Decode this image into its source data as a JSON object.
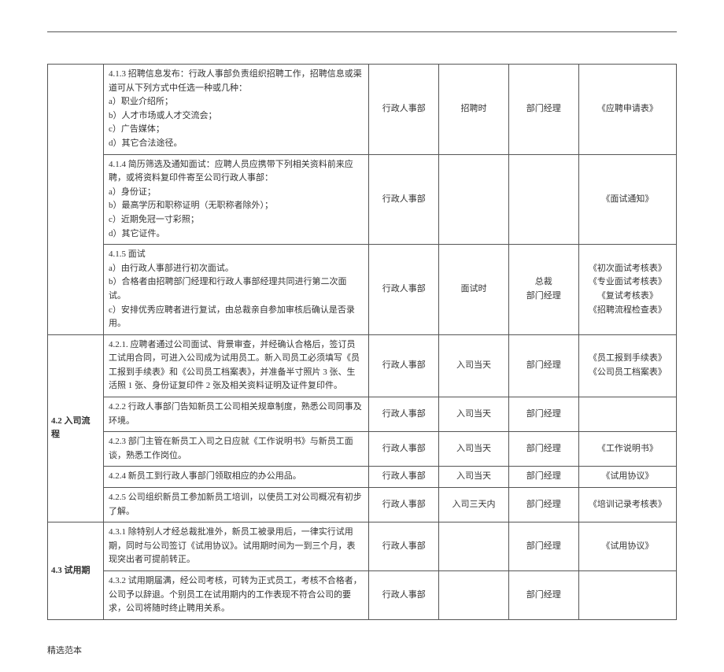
{
  "footer": "精选范本",
  "sections": {
    "s42": "4.2 入司流程",
    "s43": "4.3  试用期"
  },
  "rows": [
    {
      "desc": "4.1.3 招聘信息发布：行政人事部负责组织招聘工作，招聘信息或渠道可从下列方式中任选一种或几种：\na）职业介绍所；\nb）人才市场或人才交流会；\nc）广告媒体；\nd）其它合法途径。",
      "col3": "行政人事部",
      "col4": "招聘时",
      "col5": "部门经理",
      "col6": "《应聘申请表》"
    },
    {
      "desc": "4.1.4 简历筛选及通知面试：应聘人员应携带下列相关资料前来应聘，或将资料复印件寄至公司行政人事部：\na）身份证；\nb）最高学历和职称证明（无职称者除外）；\nc）近期免冠一寸彩照；\nd）其它证件。",
      "col3": "行政人事部",
      "col4": "",
      "col5": "",
      "col6": "《面试通知》"
    },
    {
      "desc": "4.1.5 面试\na）由行政人事部进行初次面试。\nb）合格者由招聘部门经理和行政人事部经理共同进行第二次面试。\nc）安排优秀应聘者进行复试，由总裁亲自参加审核后确认是否录用。",
      "col3": "行政人事部",
      "col4": "面试时",
      "col5": "总裁\n部门经理",
      "col6": "《初次面试考核表》\n《专业面试考核表》\n《复试考核表》\n《招聘流程检查表》"
    },
    {
      "desc": "4.2.1. 应聘者通过公司面试、背景审查，并经确认合格后，签订员工试用合同，可进入公司成为试用员工。新入司员工必须填写《员工报到手续表》和《公司员工档案表》，并准备半寸照片 3 张、生活照 1 张、身份证复印件  2 张及相关资料证明及证件复印件。",
      "col3": "行政人事部",
      "col4": "入司当天",
      "col5": "部门经理",
      "col6": "《员工报到手续表》\n《公司员工档案表》"
    },
    {
      "desc": "4.2.2 行政人事部门告知新员工公司相关规章制度，熟悉公司同事及环境。",
      "col3": "行政人事部",
      "col4": "入司当天",
      "col5": "部门经理",
      "col6": ""
    },
    {
      "desc": "4.2.3 部门主管在新员工入司之日应就《工作说明书》与新员工面谈，熟悉工作岗位。",
      "col3": "行政人事部",
      "col4": "入司当天",
      "col5": "部门经理",
      "col6": "《工作说明书》"
    },
    {
      "desc": "4.2.4 新员工到行政人事部门领取相应的办公用品。",
      "col3": "行政人事部",
      "col4": "入司当天",
      "col5": "部门经理",
      "col6": "《试用协议》"
    },
    {
      "desc": "4.2.5 公司组织新员工参加新员工培训，以使员工对公司概况有初步了解。",
      "col3": "行政人事部",
      "col4": "入司三天内",
      "col5": "部门经理",
      "col6": "《培训记录考核表》"
    },
    {
      "desc": "4.3.1 除特别人才经总裁批准外，新员工被录用后，一律实行试用期，同时与公司签订《试用协议》。试用期时间为一到三个月，表现突出者可提前转正。",
      "col3": "行政人事部",
      "col4": "",
      "col5": "部门经理",
      "col6": "《试用协议》"
    },
    {
      "desc": "4.3.2 试用期届满，经公司考核，可转为正式员工，考核不合格者，公司予以辞退。个别员工在试用期内的工作表现不符合公司的要求，公司将随时终止聘用关系。",
      "col3": "行政人事部",
      "col4": "",
      "col5": "部门经理",
      "col6": ""
    }
  ]
}
